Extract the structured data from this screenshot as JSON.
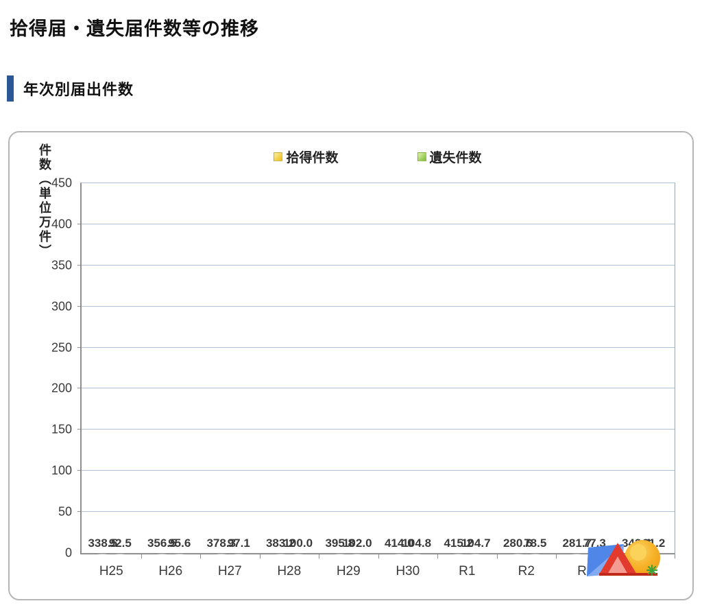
{
  "page": {
    "title": "拾得届・遺失届件数等の推移",
    "section_title": "年次別届出件数"
  },
  "chart_data": {
    "type": "bar",
    "title": "",
    "xlabel": "",
    "ylabel": "件数（単位万件）",
    "ylim": [
      0,
      450
    ],
    "ytick_step": 50,
    "grid": "horizontal",
    "legend_position": "top",
    "categories": [
      "H25",
      "H26",
      "H27",
      "H28",
      "H29",
      "H30",
      "R1",
      "R2",
      "R3",
      "R4"
    ],
    "series": [
      {
        "name": "拾得件数",
        "color": "#F2CE3C",
        "values": [
          338.5,
          356.5,
          378.3,
          383.2,
          395.8,
          414.0,
          415.2,
          280.6,
          281.7,
          343.4
        ]
      },
      {
        "name": "遺失件数",
        "color": "#94C94F",
        "values": [
          92.5,
          95.6,
          97.1,
          100.0,
          102.0,
          104.8,
          104.7,
          78.5,
          77.3,
          91.2
        ]
      }
    ]
  },
  "colors": {
    "accent_bar": "#2b5796",
    "gridline": "#aec0d8"
  }
}
